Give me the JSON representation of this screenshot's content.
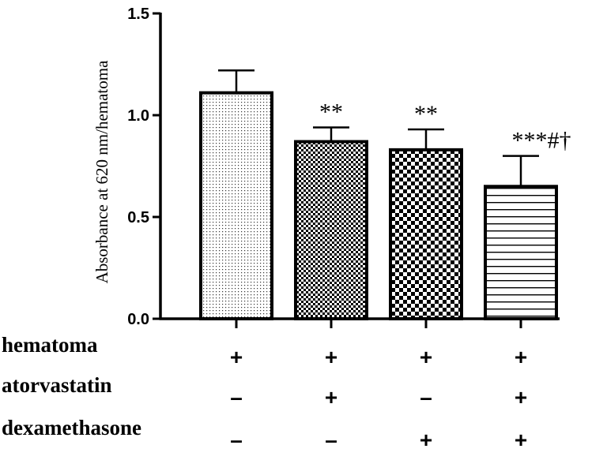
{
  "chart_data": {
    "type": "bar",
    "ylabel": "Absorbance at 620 nm/hematoma",
    "ylim": [
      0,
      1.5
    ],
    "yticks": [
      0.0,
      0.5,
      1.0,
      1.5
    ],
    "ytick_labels": [
      "0.0",
      "0.5",
      "1.0",
      "1.5"
    ],
    "bars": [
      {
        "value": 1.11,
        "error": 0.11,
        "pattern": "dots",
        "annotation": ""
      },
      {
        "value": 0.87,
        "error": 0.07,
        "pattern": "fine-checker",
        "annotation": "**"
      },
      {
        "value": 0.83,
        "error": 0.1,
        "pattern": "checker",
        "annotation": "**"
      },
      {
        "value": 0.65,
        "error": 0.15,
        "pattern": "horizontal-lines",
        "annotation": "***#†"
      }
    ],
    "conditions": [
      {
        "label": "hematoma",
        "signs": [
          "+",
          "+",
          "+",
          "+"
        ]
      },
      {
        "label": "atorvastatin",
        "signs": [
          "–",
          "+",
          "–",
          "+"
        ]
      },
      {
        "label": "dexamethasone",
        "signs": [
          "–",
          "–",
          "+",
          "+"
        ]
      }
    ]
  }
}
